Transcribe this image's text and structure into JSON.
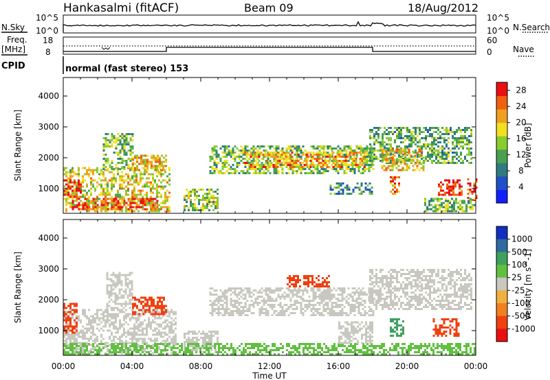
{
  "header": {
    "station": "Hankasalmi (fitACF)",
    "beam": "Beam 09",
    "date": "18/Aug/2012"
  },
  "side_labels": {
    "nsky": "N.Sky",
    "nsearch": "N.Search",
    "freq_top": "Freq.",
    "freq_unit": "[MHz]",
    "cpid": "CPID",
    "nave": "Nave"
  },
  "mode_text": "normal (fast stereo) 153",
  "axis_text": {
    "noise_top": "10^5",
    "noise_bottom": "10^0",
    "noise_top_r": "10^5",
    "noise_bottom_r": "10^0",
    "freq_top": "18",
    "freq_bottom": "8",
    "nave_top": "60",
    "nave_bottom": "0"
  },
  "colors": {
    "power": [
      "#1020ff",
      "#2050c8",
      "#2f7a80",
      "#4aa050",
      "#88cc30",
      "#f0e020",
      "#f0a020",
      "#f06010",
      "#e81010"
    ],
    "velocity": [
      "#e81010",
      "#f04010",
      "#f08020",
      "#f0b040",
      "#c8c8c0",
      "#60c040",
      "#40a060",
      "#2f6aa0",
      "#1030c0"
    ]
  },
  "chart_data": [
    {
      "type": "heatmap",
      "name_hint": "power",
      "ylabel": "Slant Range [km]",
      "yticks": [
        1000,
        2000,
        3000,
        4000
      ],
      "ylim": [
        200,
        4600
      ],
      "xticks": [
        "00:00",
        "04:00",
        "08:00",
        "12:00",
        "16:00",
        "20:00",
        "00:00"
      ],
      "xlim_hours": [
        0,
        24
      ],
      "colorbar": {
        "label": "Power [dB]",
        "ticks": [
          "4",
          "8",
          "12",
          "16",
          "20",
          "24",
          "28"
        ],
        "range": [
          0,
          30
        ]
      },
      "regions": [
        {
          "t0": 0.0,
          "t1": 6.2,
          "r0": 250,
          "r1": 1700,
          "v": 18
        },
        {
          "t0": 0.0,
          "t1": 1.0,
          "r0": 700,
          "r1": 1300,
          "v": 28
        },
        {
          "t0": 0.5,
          "t1": 5.5,
          "r0": 300,
          "r1": 700,
          "v": 26
        },
        {
          "t0": 2.3,
          "t1": 4.0,
          "r0": 1600,
          "r1": 2800,
          "v": 14
        },
        {
          "t0": 4.0,
          "t1": 6.0,
          "r0": 1600,
          "r1": 2100,
          "v": 20
        },
        {
          "t0": 7.0,
          "t1": 9.0,
          "r0": 300,
          "r1": 1000,
          "v": 15
        },
        {
          "t0": 8.5,
          "t1": 18.0,
          "r0": 1500,
          "r1": 2400,
          "v": 14
        },
        {
          "t0": 10.5,
          "t1": 17.5,
          "r0": 1700,
          "r1": 2200,
          "v": 22
        },
        {
          "t0": 15.5,
          "t1": 18.0,
          "r0": 800,
          "r1": 1200,
          "v": 10
        },
        {
          "t0": 17.8,
          "t1": 23.8,
          "r0": 1800,
          "r1": 3000,
          "v": 12
        },
        {
          "t0": 18.5,
          "t1": 21.0,
          "r0": 1600,
          "r1": 2300,
          "v": 20
        },
        {
          "t0": 19.0,
          "t1": 19.6,
          "r0": 800,
          "r1": 1400,
          "v": 22
        },
        {
          "t0": 21.8,
          "t1": 23.2,
          "r0": 800,
          "r1": 1300,
          "v": 28
        },
        {
          "t0": 23.5,
          "t1": 24.0,
          "r0": 600,
          "r1": 1400,
          "v": 28
        },
        {
          "t0": 21.0,
          "t1": 24.0,
          "r0": 250,
          "r1": 700,
          "v": 14
        }
      ]
    },
    {
      "type": "heatmap",
      "name_hint": "velocity",
      "ylabel": "Slant Range [km]",
      "yticks": [
        1000,
        2000,
        3000,
        4000
      ],
      "ylim": [
        200,
        4600
      ],
      "xticks": [
        "00:00",
        "04:00",
        "08:00",
        "12:00",
        "16:00",
        "20:00",
        "00:00"
      ],
      "xlim_hours": [
        0,
        24
      ],
      "xlabel": "Time UT",
      "colorbar": {
        "label": "Velocity [m s^-1]",
        "ticks": [
          "1000",
          "500",
          "100",
          "25",
          "-25",
          "-100",
          "-500",
          "-1000"
        ]
      },
      "regions": [
        {
          "t0": 0.0,
          "t1": 6.5,
          "r0": 250,
          "r1": 1700,
          "v": 0
        },
        {
          "t0": 2.5,
          "t1": 4.0,
          "r0": 1700,
          "r1": 2900,
          "v": 0
        },
        {
          "t0": 4.0,
          "t1": 6.0,
          "r0": 1500,
          "r1": 2100,
          "v": -300
        },
        {
          "t0": 0.0,
          "t1": 0.8,
          "r0": 900,
          "r1": 1900,
          "v": -150
        },
        {
          "t0": 7.0,
          "t1": 9.0,
          "r0": 300,
          "r1": 1000,
          "v": 0
        },
        {
          "t0": 8.5,
          "t1": 18.0,
          "r0": 1500,
          "r1": 2400,
          "v": 0
        },
        {
          "t0": 13.0,
          "t1": 15.5,
          "r0": 2400,
          "r1": 2800,
          "v": -300
        },
        {
          "t0": 17.8,
          "t1": 23.8,
          "r0": 1700,
          "r1": 3000,
          "v": 0
        },
        {
          "t0": 19.0,
          "t1": 19.8,
          "r0": 800,
          "r1": 1400,
          "v": 300
        },
        {
          "t0": 21.5,
          "t1": 23.0,
          "r0": 800,
          "r1": 1400,
          "v": -300
        },
        {
          "t0": 0.0,
          "t1": 24.0,
          "r0": 200,
          "r1": 600,
          "v": 50
        },
        {
          "t0": 16.0,
          "t1": 18.0,
          "r0": 600,
          "r1": 1300,
          "v": 0
        }
      ]
    }
  ]
}
